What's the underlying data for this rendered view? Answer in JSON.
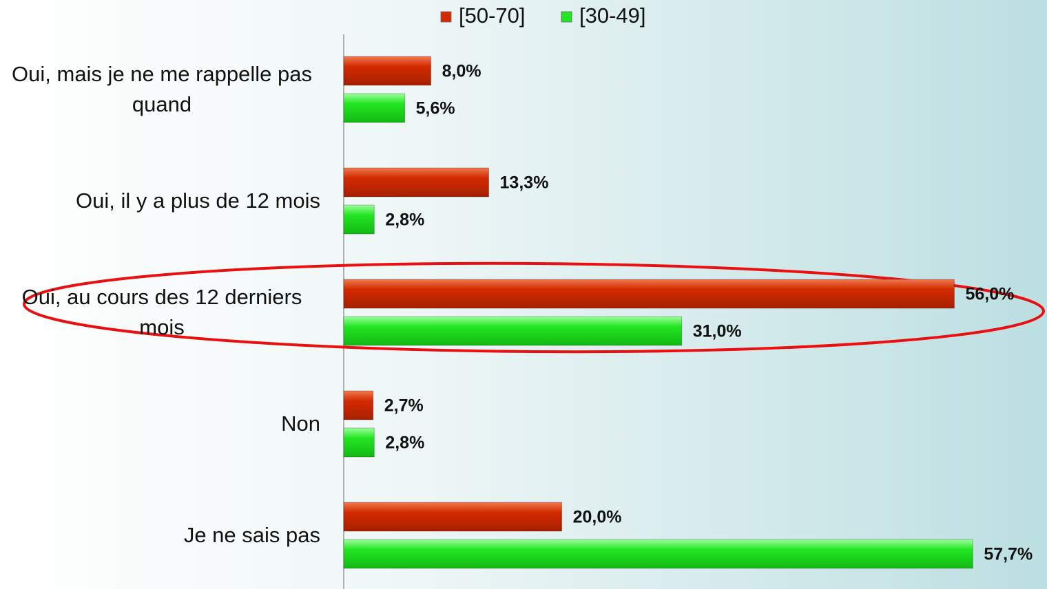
{
  "chart_data": {
    "type": "bar",
    "orientation": "horizontal",
    "categories": [
      "Oui, mais je ne me rappelle pas quand",
      "Oui, il y a plus de 12 mois",
      "Oui, au cours des 12 derniers mois",
      "Non",
      "Je ne sais pas"
    ],
    "series": [
      {
        "name": "[50-70]",
        "color": "#d32a00",
        "values": [
          8.0,
          13.3,
          56.0,
          2.7,
          20.0
        ],
        "value_labels": [
          "8,0%",
          "13,3%",
          "56,0%",
          "2,7%",
          "20,0%"
        ]
      },
      {
        "name": "[30-49]",
        "color": "#22e622",
        "values": [
          5.6,
          2.8,
          31.0,
          2.8,
          57.7
        ],
        "value_labels": [
          "5,6%",
          "2,8%",
          "31,0%",
          "2,8%",
          "57,7%"
        ]
      }
    ],
    "xlim": [
      0,
      64.5
    ],
    "legend": "top",
    "grid": false
  }
}
